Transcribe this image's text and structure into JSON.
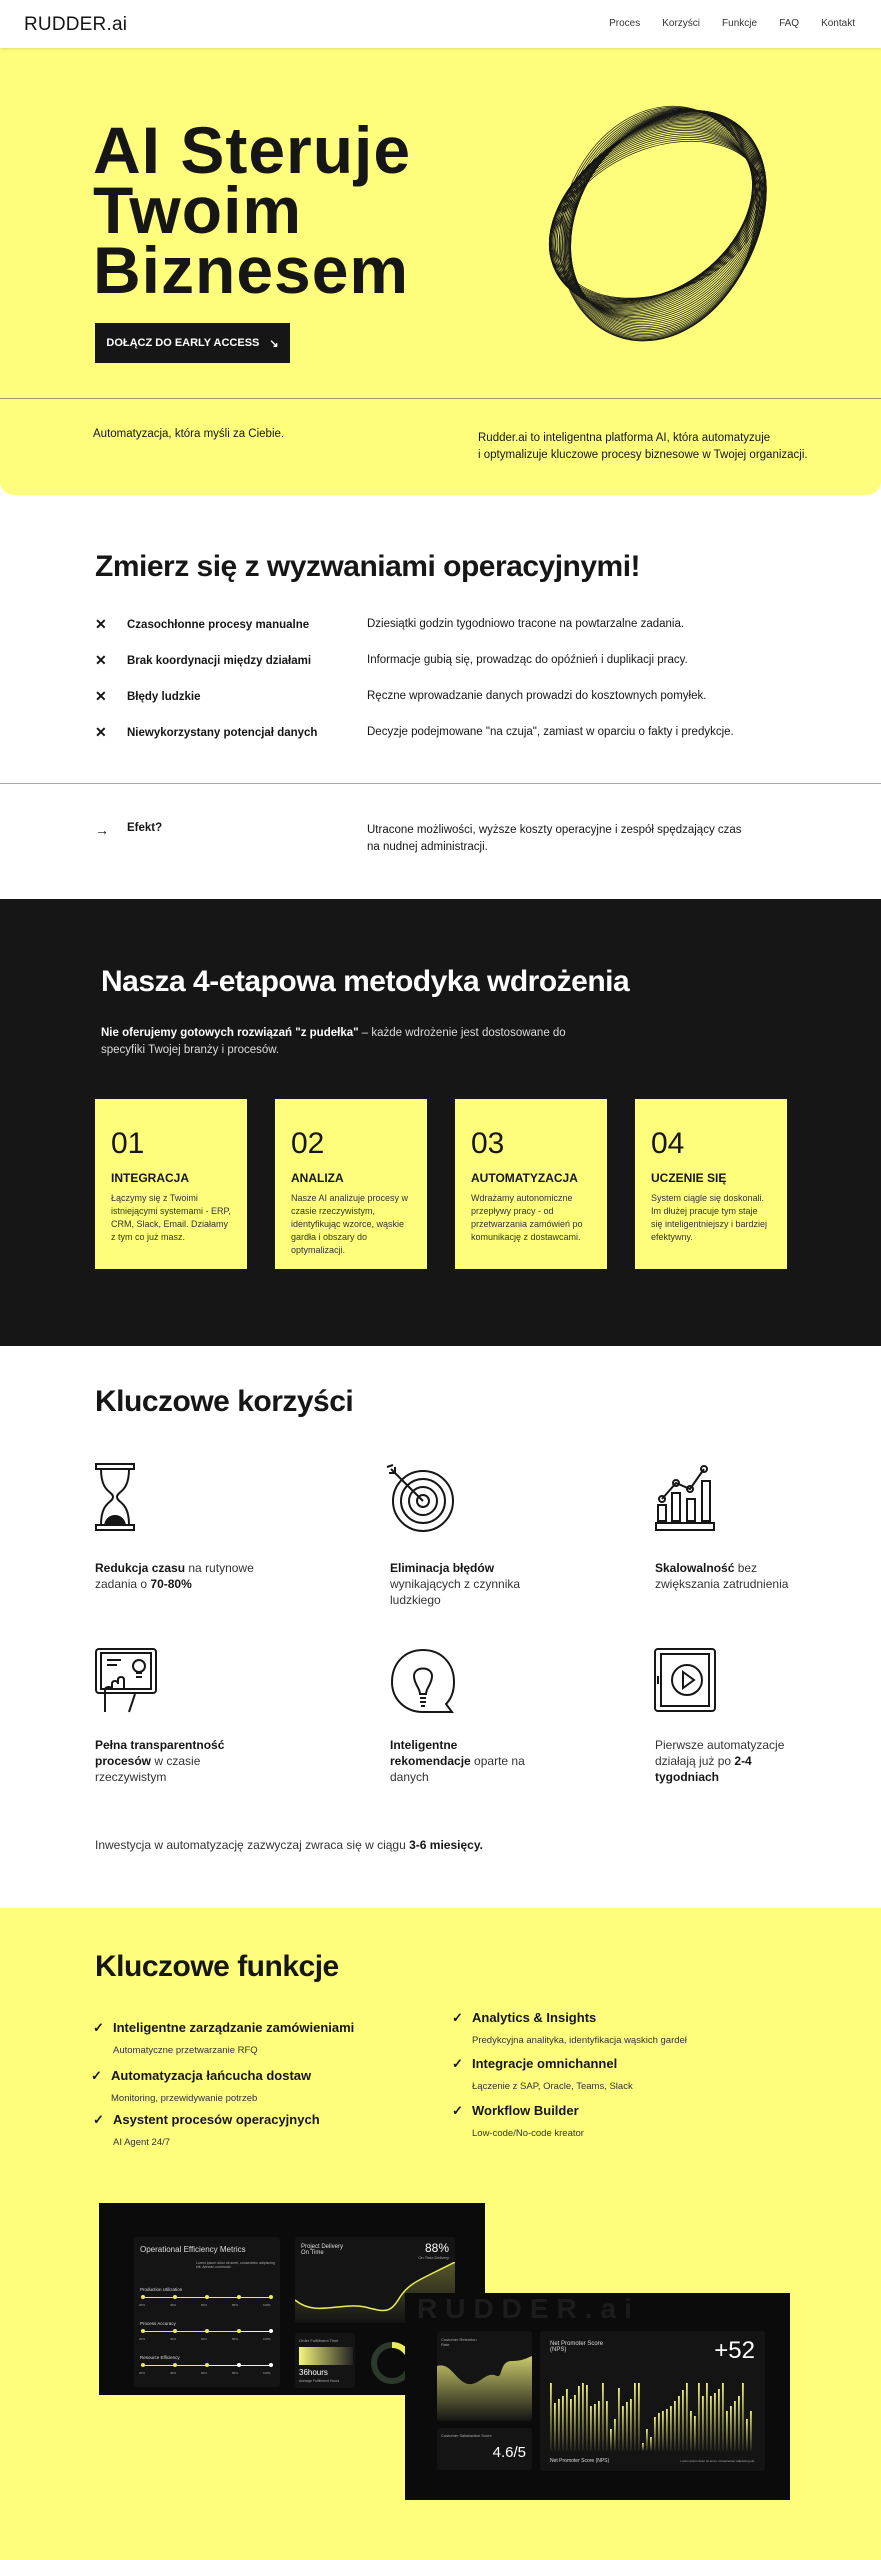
{
  "nav": {
    "logo": "RUDDER.ai",
    "links": [
      "Proces",
      "Korzyści",
      "Funkcje",
      "FAQ",
      "Kontakt"
    ]
  },
  "hero": {
    "title_lines": [
      "AI Steruje",
      "Twoim",
      "Biznesem"
    ],
    "cta": "DOŁĄCZ DO EARLY ACCESS",
    "cta_icon": "arrow-down-right-icon",
    "tagline": "Automatyzacja, która myśli za Ciebie.",
    "description_lines": [
      "Rudder.ai to inteligentna platforma AI, która automatyzuje",
      "i optymalizuje kluczowe procesy biznesowe w Twojej organizacji."
    ]
  },
  "challenges": {
    "title": "Zmierz się z wyzwaniami operacyjnymi!",
    "items": [
      {
        "label": "Czasochłonne procesy manualne",
        "desc": "Dziesiątki godzin tygodniowo tracone na powtarzalne zadania."
      },
      {
        "label": "Brak koordynacji między działami",
        "desc": "Informacje gubią się, prowadząc do opóźnień i duplikacji pracy."
      },
      {
        "label": "Błędy ludzkie",
        "desc": "Ręczne wprowadzanie danych prowadzi do kosztownych pomyłek."
      },
      {
        "label": "Niewykorzystany potencjał danych",
        "desc": "Decyzje podejmowane \"na czuja\", zamiast w oparciu o fakty i predykcje."
      }
    ],
    "effect": {
      "label": "Efekt?",
      "desc": "Utracone możliwości, wyższe koszty operacyjne i zespół spędzający czas na nudnej administracji."
    }
  },
  "method": {
    "title": "Nasza 4-etapowa metodyka wdrożenia",
    "intro_bold": "Nie oferujemy gotowych rozwiązań \"z pudełka\"",
    "intro_rest": " – każde wdrożenie jest dostosowane do specyfiki Twojej branży i procesów.",
    "steps": [
      {
        "num": "01",
        "title": "INTEGRACJA",
        "desc": "Łączymy się z Twoimi istniejącymi systemami - ERP, CRM, Slack, Email. Działamy z tym co już masz."
      },
      {
        "num": "02",
        "title": "ANALIZA",
        "desc": "Nasze AI analizuje procesy w czasie rzeczywistym, identyfikując wzorce, wąskie gardła i obszary do optymalizacji."
      },
      {
        "num": "03",
        "title": "AUTOMATYZACJA",
        "desc": "Wdrażamy autonomiczne przepływy pracy - od przetwarzania zamówień po komunikację z dostawcami."
      },
      {
        "num": "04",
        "title": "UCZENIE SIĘ",
        "desc": "System ciągle się doskonali. Im dłużej pracuje tym staje się inteligentniejszy i bardziej efektywny."
      }
    ]
  },
  "benefits": {
    "title": "Kluczowe korzyści",
    "items": [
      {
        "icon": "hourglass-icon",
        "bold": "Redukcja czasu",
        "text": " na rutynowe zadania o ",
        "bold2": "70-80%"
      },
      {
        "icon": "target-icon",
        "bold": "Eliminacja błędów",
        "text": " wynikających z czynnika ludzkiego",
        "bold2": ""
      },
      {
        "icon": "growth-chart-icon",
        "bold": "Skalowalność",
        "text": " bez zwiększania zatrudnienia",
        "bold2": ""
      },
      {
        "icon": "tablet-touch-icon",
        "bold": "Pełna transparentność procesów",
        "text": " w czasie rzeczywistym",
        "bold2": ""
      },
      {
        "icon": "lightbulb-bubble-icon",
        "bold": "Inteligentne rekomendacje",
        "text": " oparte na danych",
        "bold2": ""
      },
      {
        "icon": "tablet-play-icon",
        "bold": "",
        "text": "Pierwsze automatyzacje działają już po ",
        "bold2": "2-4 tygodniach"
      }
    ],
    "roi_text": "Inwestycja w automatyzację zazwyczaj zwraca się w ciągu ",
    "roi_bold": "3-6 miesięcy."
  },
  "features": {
    "title": "Kluczowe funkcje",
    "left": [
      {
        "title": "Inteligentne zarządzanie zamówieniami",
        "sub": "Automatyczne przetwarzanie RFQ"
      },
      {
        "title": "Automatyzacja łańcucha dostaw",
        "sub": "Monitoring, przewidywanie potrzeb"
      },
      {
        "title": "Asystent procesów operacyjnych",
        "sub": "AI Agent 24/7"
      }
    ],
    "right": [
      {
        "title": "Analytics & Insights",
        "sub": "Predykcyjna analityka, identyfikacja wąskich gardeł"
      },
      {
        "title": "Integracje omnichannel",
        "sub": "Łączenie z SAP, Oracle, Teams, Slack"
      },
      {
        "title": "Workflow Builder",
        "sub": "Low-code/No-code kreator"
      }
    ]
  },
  "dashboard": {
    "ops_title": "Operational Efficiency Metrics",
    "lorem": "Lorem ipsum dolor sit amet, consectetur adipiscing elit. Aenean commodo.",
    "metrics": [
      "Production Utilization",
      "Process Accuracy",
      "Resource Efficiency"
    ],
    "ticks": [
      "20%",
      "40%",
      "60%",
      "80%",
      "100%"
    ],
    "delivery_title": "Project Delivery On Time",
    "delivery_value": "88%",
    "delivery_sub": "On Time Delivery",
    "fulfil_title": "Order Fulfillment Time",
    "fulfil_value": "36hours",
    "fulfil_sub": "Average Fulfillment Hours",
    "retention_title": "Customer Retention Rate",
    "csat_title": "Customer Satisfaction Score",
    "csat_value": "4.6/5",
    "nps_title": "Net Promoter Score (NPS)",
    "nps_value": "+52",
    "nps_footer": "Net Promoter Score (NPS)",
    "nps_lorem": "Lorem ipsum dolor sit amet, consectetuer adipiscing elit.",
    "watermark": "RUDDER.ai",
    "accent": "#e8ec5a"
  },
  "colors": {
    "yellow": "#fefe7c",
    "dark": "#161616"
  }
}
